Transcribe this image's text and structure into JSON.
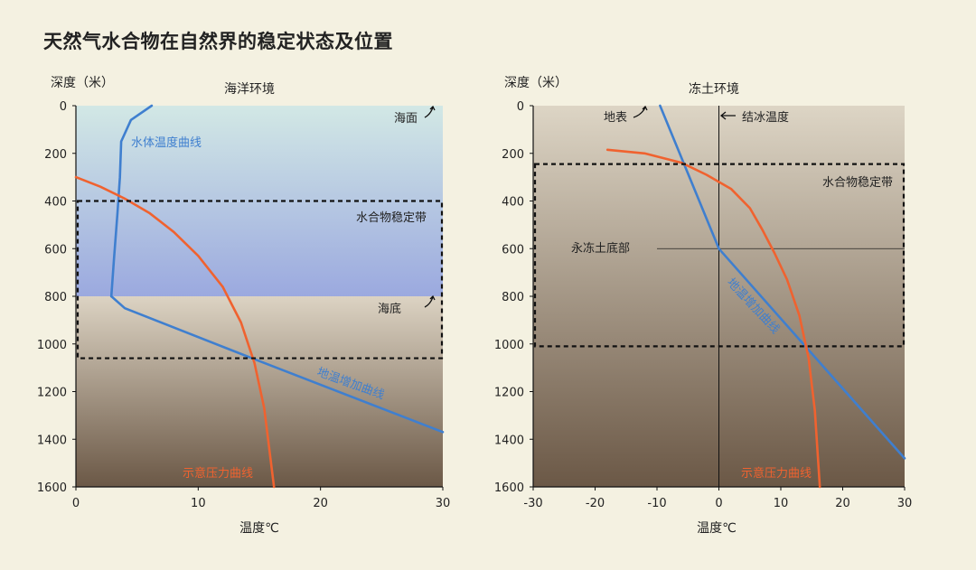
{
  "title": "天然气水合物在自然界的稳定状态及位置",
  "colors": {
    "background": "#f4f1e1",
    "water_curve": "#3f7fcf",
    "geothermal_curve": "#3f7fcf",
    "pressure_curve": "#f0622f",
    "zone_border": "#111111"
  },
  "chart_data": [
    {
      "type": "line",
      "title": "海洋环境",
      "ylabel": "深度（米）",
      "xlabel": "温度℃",
      "xlim": [
        0,
        30
      ],
      "ylim": [
        0,
        1600
      ],
      "y_inverted": true,
      "x_ticks": [
        0,
        10,
        20,
        30
      ],
      "y_ticks": [
        0,
        200,
        400,
        600,
        800,
        1000,
        1200,
        1400,
        1600
      ],
      "grid": false,
      "background_bands": [
        {
          "name": "海水",
          "from": 0,
          "to": 800,
          "colors": [
            "#cfe6e4",
            "#9aaadf"
          ]
        },
        {
          "name": "沉积物",
          "from": 800,
          "to": 1600,
          "colors": [
            "#d9d0c0",
            "#6e5b48"
          ]
        }
      ],
      "series": [
        {
          "name": "水体温度曲线",
          "color": "#3f7fcf",
          "points": [
            [
              6.2,
              0
            ],
            [
              4.5,
              60
            ],
            [
              3.7,
              150
            ],
            [
              3.6,
              300
            ],
            [
              3.4,
              450
            ],
            [
              3.1,
              650
            ],
            [
              2.9,
              800
            ]
          ]
        },
        {
          "name": "地温增加曲线",
          "color": "#3f7fcf",
          "points": [
            [
              2.9,
              800
            ],
            [
              4.0,
              850
            ],
            [
              14.4,
              1060
            ],
            [
              30,
              1370
            ]
          ]
        },
        {
          "name": "示意压力曲线",
          "color": "#f0622f",
          "points": [
            [
              0,
              300
            ],
            [
              2,
              340
            ],
            [
              4,
              390
            ],
            [
              6,
              450
            ],
            [
              8,
              530
            ],
            [
              10,
              630
            ],
            [
              12,
              760
            ],
            [
              13.5,
              910
            ],
            [
              14.6,
              1080
            ],
            [
              15.4,
              1270
            ],
            [
              16.2,
              1600
            ]
          ]
        }
      ],
      "stability_zone": {
        "label": "水合物稳定带",
        "x": [
          0,
          30
        ],
        "y": [
          400,
          1060
        ]
      },
      "annotations": [
        {
          "text": "海面",
          "x": 29,
          "y": 45
        },
        {
          "text": "海底",
          "x": 29,
          "y": 840
        }
      ]
    },
    {
      "type": "line",
      "title": "冻土环境",
      "ylabel": "深度（米）",
      "xlabel": "温度℃",
      "xlim": [
        -30,
        30
      ],
      "ylim": [
        0,
        1600
      ],
      "y_inverted": true,
      "x_ticks": [
        -30,
        -20,
        -10,
        0,
        10,
        20,
        30
      ],
      "y_ticks": [
        0,
        200,
        400,
        600,
        800,
        1000,
        1200,
        1400,
        1600
      ],
      "grid": false,
      "background_bands": [
        {
          "name": "冻土及地层",
          "from": 0,
          "to": 1600,
          "colors": [
            "#ddd4c4",
            "#6e5b48"
          ]
        }
      ],
      "series": [
        {
          "name": "地温增加曲线",
          "color": "#3f7fcf",
          "points": [
            [
              -9.5,
              0
            ],
            [
              0,
              600
            ],
            [
              30,
              1480
            ]
          ]
        },
        {
          "name": "示意压力曲线",
          "color": "#f0622f",
          "points": [
            [
              -18,
              185
            ],
            [
              -12,
              200
            ],
            [
              -6,
              240
            ],
            [
              -2,
              290
            ],
            [
              2,
              350
            ],
            [
              5,
              430
            ],
            [
              7,
              520
            ],
            [
              9,
              620
            ],
            [
              11,
              730
            ],
            [
              13,
              880
            ],
            [
              14.5,
              1060
            ],
            [
              15.5,
              1280
            ],
            [
              16.3,
              1600
            ]
          ]
        }
      ],
      "freezing_line": {
        "label": "结冰温度",
        "x": 0
      },
      "permafrost_base": {
        "label": "永冻土底部",
        "y": 600,
        "x": [
          -10,
          30
        ]
      },
      "stability_zone": {
        "label": "水合物稳定带",
        "x": [
          -30,
          30
        ],
        "y": [
          245,
          1010
        ]
      },
      "annotations": [
        {
          "text": "地表",
          "x": -12,
          "y": 45
        }
      ]
    }
  ]
}
